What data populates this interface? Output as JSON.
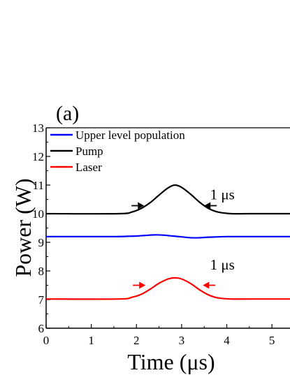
{
  "chart_data": {
    "type": "line",
    "panel_label": "(a)",
    "xlabel": "Time (μs)",
    "ylabel": "Power (W)",
    "xlim": [
      0,
      5.4
    ],
    "ylim": [
      6,
      13
    ],
    "x_ticks": [
      0,
      1,
      2,
      3,
      4,
      5
    ],
    "y_ticks": [
      6,
      7,
      8,
      9,
      10,
      11,
      12,
      13
    ],
    "grid": false,
    "legend_position": "top-left",
    "series": [
      {
        "name": "Upper level population",
        "color": "#0000ff",
        "x": [
          0,
          1.5,
          1.8,
          2.0,
          2.2,
          2.4,
          2.6,
          2.8,
          3.0,
          3.2,
          3.4,
          3.6,
          3.8,
          4.0,
          4.5,
          5.4
        ],
        "y": [
          9.2,
          9.2,
          9.21,
          9.22,
          9.24,
          9.26,
          9.25,
          9.22,
          9.19,
          9.16,
          9.16,
          9.18,
          9.19,
          9.2,
          9.2,
          9.2
        ]
      },
      {
        "name": "Pump",
        "color": "#000000",
        "x": [
          0,
          1.6,
          1.9,
          2.1,
          2.3,
          2.5,
          2.7,
          2.85,
          3.0,
          3.2,
          3.4,
          3.6,
          3.8,
          4.1,
          4.5,
          5.4
        ],
        "y": [
          10.0,
          10.0,
          10.06,
          10.18,
          10.38,
          10.65,
          10.9,
          11.0,
          10.92,
          10.68,
          10.4,
          10.18,
          10.06,
          10.0,
          10.0,
          10.0
        ]
      },
      {
        "name": "Laser",
        "color": "#ff0000",
        "x": [
          0,
          1.6,
          1.9,
          2.1,
          2.3,
          2.5,
          2.7,
          2.85,
          3.0,
          3.2,
          3.4,
          3.6,
          3.8,
          4.1,
          4.5,
          5.4
        ],
        "y": [
          7.02,
          7.02,
          7.08,
          7.18,
          7.36,
          7.57,
          7.72,
          7.76,
          7.72,
          7.56,
          7.34,
          7.16,
          7.06,
          7.02,
          7.02,
          7.02
        ]
      }
    ],
    "annotations": [
      {
        "text": "1 μs",
        "series": "Pump",
        "arrow_color": "#000000",
        "arrow_y": 10.28,
        "arrow_x_left": 2.17,
        "arrow_x_right": 3.5,
        "text_x": 3.63,
        "text_y": 10.5
      },
      {
        "text": "1 μs",
        "series": "Laser",
        "arrow_color": "#ff0000",
        "arrow_y": 7.5,
        "arrow_x_left": 2.2,
        "arrow_x_right": 3.47,
        "text_x": 3.63,
        "text_y": 8.05
      }
    ]
  }
}
